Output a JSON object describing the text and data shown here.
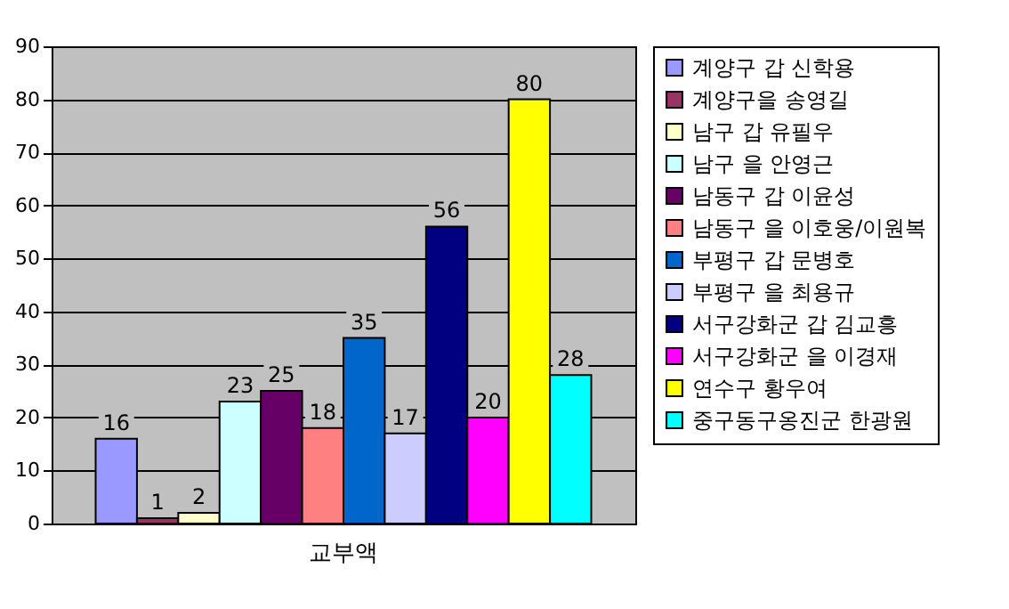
{
  "chart_data": {
    "type": "bar",
    "categories": [
      "교부액"
    ],
    "ylim": [
      0,
      90
    ],
    "yticks": [
      0,
      10,
      20,
      30,
      40,
      50,
      60,
      70,
      80,
      90
    ],
    "grid": "y",
    "legend": "right",
    "data_labels": true,
    "series": [
      {
        "name": "계양구 갑 신학용",
        "color": "#9999ff",
        "values": [
          16
        ]
      },
      {
        "name": "계양구을 송영길",
        "color": "#993366",
        "values": [
          1
        ]
      },
      {
        "name": "남구 갑 유필우",
        "color": "#ffffcc",
        "values": [
          2
        ]
      },
      {
        "name": "남구 을 안영근",
        "color": "#ccffff",
        "values": [
          23
        ]
      },
      {
        "name": "남동구 갑 이윤성",
        "color": "#660066",
        "values": [
          25
        ]
      },
      {
        "name": "남동구 을 이호웅/이원복",
        "color": "#ff8080",
        "values": [
          18
        ]
      },
      {
        "name": "부평구 갑 문병호",
        "color": "#0066cc",
        "values": [
          35
        ]
      },
      {
        "name": "부평구 을 최용규",
        "color": "#ccccff",
        "values": [
          17
        ]
      },
      {
        "name": "서구강화군 갑 김교흥",
        "color": "#000080",
        "values": [
          56
        ]
      },
      {
        "name": "서구강화군 을 이경재",
        "color": "#ff00ff",
        "values": [
          20
        ]
      },
      {
        "name": "연수구 황우여",
        "color": "#ffff00",
        "values": [
          80
        ]
      },
      {
        "name": "중구동구옹진군 한광원",
        "color": "#00ffff",
        "values": [
          28
        ]
      }
    ]
  }
}
